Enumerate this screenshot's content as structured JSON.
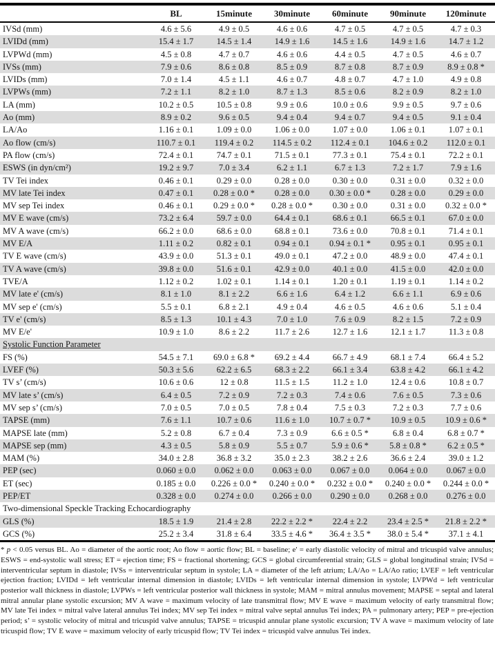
{
  "colors": {
    "stripe": "#dcdcdc",
    "border": "#000000",
    "text": "#141414",
    "background": "#ffffff"
  },
  "table": {
    "columns": [
      "BL",
      "15minute",
      "30minute",
      "60minute",
      "90minute",
      "120minute"
    ],
    "rows": [
      {
        "type": "data",
        "label": "IVSd (mm)",
        "values": [
          "4.6 ± 5.6",
          "4.9 ± 0.5",
          "4.6 ± 0.6",
          "4.7 ± 0.5",
          "4.7 ± 0.5",
          "4.7 ± 0.3"
        ]
      },
      {
        "type": "data",
        "label": "LVIDd (mm)",
        "values": [
          "15.4 ± 1.7",
          "14.5 ± 1.4",
          "14.9 ± 1.6",
          "14.5 ± 1.6",
          "14.9 ± 1.6",
          "14.7 ± 1.2"
        ]
      },
      {
        "type": "data",
        "label": "LVPWd (mm)",
        "values": [
          "4.5 ± 0.8",
          "4.7 ± 0.7",
          "4.6 ± 0.6",
          "4.4 ± 0.5",
          "4.7 ± 0.5",
          "4.6 ± 0.7"
        ]
      },
      {
        "type": "data",
        "label": "IVSs (mm)",
        "values": [
          "7.9 ± 0.6",
          "8.6 ± 0.8",
          "8.5 ± 0.9",
          "8.7 ± 0.8",
          "8.7 ± 0.9",
          "8.9 ± 0.8 *"
        ]
      },
      {
        "type": "data",
        "label": "LVIDs (mm)",
        "values": [
          "7.0 ± 1.4",
          "4.5 ± 1.1",
          "4.6 ± 0.7",
          "4.8 ± 0.7",
          "4.7 ± 1.0",
          "4.9 ± 0.8"
        ]
      },
      {
        "type": "data",
        "label": "LVPWs (mm)",
        "values": [
          "7.2 ± 1.1",
          "8.2 ± 1.0",
          "8.7 ± 1.3",
          "8.5 ± 0.6",
          "8.2 ± 0.9",
          "8.2 ± 1.0"
        ]
      },
      {
        "type": "data",
        "label": "LA (mm)",
        "values": [
          "10.2 ± 0.5",
          "10.5 ± 0.8",
          "9.9 ± 0.6",
          "10.0 ± 0.6",
          "9.9 ± 0.5",
          "9.7 ± 0.6"
        ]
      },
      {
        "type": "data",
        "label": "Ao (mm)",
        "values": [
          "8.9 ± 0.2",
          "9.6 ± 0.5",
          "9.4 ± 0.4",
          "9.4 ± 0.7",
          "9.4 ± 0.5",
          "9.1 ± 0.4"
        ]
      },
      {
        "type": "data",
        "label": "LA/Ao",
        "values": [
          "1.16 ± 0.1",
          "1.09 ± 0.0",
          "1.06 ± 0.0",
          "1.07 ± 0.0",
          "1.06 ± 0.1",
          "1.07 ± 0.1"
        ]
      },
      {
        "type": "data",
        "label": "Ao flow (cm/s)",
        "values": [
          "110.7 ± 0.1",
          "119.4 ± 0.2",
          "114.5 ± 0.2",
          "112.4 ± 0.1",
          "104.6 ± 0.2",
          "112.0 ± 0.1"
        ]
      },
      {
        "type": "data",
        "label": "PA flow (cm/s)",
        "values": [
          "72.4 ± 0.1",
          "74.7 ± 0.1",
          "71.5 ± 0.1",
          "77.3 ± 0.1",
          "75.4 ± 0.1",
          "72.2 ± 0.1"
        ]
      },
      {
        "type": "data",
        "label": "ESWS (in dyn/cm²)",
        "values": [
          "19.2 ± 9.7",
          "7.0 ± 3.4",
          "6.2 ± 1.1",
          "6.7 ± 1.3",
          "7.2 ± 1.7",
          "7.9 ± 1.6"
        ]
      },
      {
        "type": "data",
        "label": "TV Tei index",
        "values": [
          "0.46 ± 0.1",
          "0.29 ± 0.0",
          "0.28 ± 0.0",
          "0.30 ± 0.0",
          "0.31 ± 0.0",
          "0.32 ± 0.0"
        ]
      },
      {
        "type": "data",
        "label": "MV late Tei index",
        "values": [
          "0.47 ± 0.1",
          "0.28 ± 0.0 *",
          "0.28 ± 0.0",
          "0.30 ± 0.0 *",
          "0.28 ± 0.0",
          "0.29 ± 0.0"
        ]
      },
      {
        "type": "data",
        "label": "MV sep Tei index",
        "values": [
          "0.46 ± 0.1",
          "0.29 ± 0.0 *",
          "0.28 ± 0.0 *",
          "0.30 ± 0.0",
          "0.31 ± 0.0",
          "0.32 ± 0.0 *"
        ]
      },
      {
        "type": "data",
        "label": "MV E wave (cm/s)",
        "values": [
          "73.2 ± 6.4",
          "59.7 ± 0.0",
          "64.4 ± 0.1",
          "68.6 ± 0.1",
          "66.5 ± 0.1",
          "67.0 ± 0.0"
        ]
      },
      {
        "type": "data",
        "label": "MV A wave (cm/s)",
        "values": [
          "66.2 ± 0.0",
          "68.6 ± 0.0",
          "68.8 ± 0.1",
          "73.6 ± 0.0",
          "70.8 ± 0.1",
          "71.4 ± 0.1"
        ]
      },
      {
        "type": "data",
        "label": "MV E/A",
        "values": [
          "1.11 ± 0.2",
          "0.82 ± 0.1",
          "0.94 ± 0.1",
          "0.94 ± 0.1 *",
          "0.95 ± 0.1",
          "0.95 ± 0.1"
        ]
      },
      {
        "type": "data",
        "label": "TV E wave (cm/s)",
        "values": [
          "43.9 ± 0.0",
          "51.3 ± 0.1",
          "49.0 ± 0.1",
          "47.2 ± 0.0",
          "48.9 ± 0.0",
          "47.4 ± 0.1"
        ]
      },
      {
        "type": "data",
        "label": "TV A wave (cm/s)",
        "values": [
          "39.8 ± 0.0",
          "51.6 ± 0.1",
          "42.9 ± 0.0",
          "40.1 ± 0.0",
          "41.5 ± 0.0",
          "42.0 ± 0.0"
        ]
      },
      {
        "type": "data",
        "label": "TVE/A",
        "values": [
          "1.12 ± 0.2",
          "1.02 ± 0.1",
          "1.14 ± 0.1",
          "1.20 ± 0.1",
          "1.19 ± 0.1",
          "1.14 ± 0.2"
        ]
      },
      {
        "type": "data",
        "label": "MV late e' (cm/s)",
        "values": [
          "8.1 ± 1.0",
          "8.1 ± 2.2",
          "6.6 ± 1.6",
          "6.4 ± 1.2",
          "6.6 ± 1.1",
          "6.9 ± 0.6"
        ]
      },
      {
        "type": "data",
        "label": "MV sep e' (cm/s)",
        "values": [
          "5.5 ± 0.1",
          "6.8 ± 2.1",
          "4.9 ± 0.4",
          "4.6 ± 0.5",
          "4.6 ± 0.6",
          "5.1 ± 0.4"
        ]
      },
      {
        "type": "data",
        "label": "TV e' (cm/s)",
        "values": [
          "8.5 ± 1.3",
          "10.1 ± 4.3",
          "7.0 ± 1.0",
          "7.6 ± 0.9",
          "8.2 ± 1.5",
          "7.2 ± 0.9"
        ]
      },
      {
        "type": "data",
        "label": "MV E/e'",
        "values": [
          "10.9 ± 1.0",
          "8.6 ± 2.2",
          "11.7 ± 2.6",
          "12.7 ± 1.6",
          "12.1 ± 1.7",
          "11.3 ± 0.8"
        ]
      },
      {
        "type": "section",
        "label": "Systolic Function Parameter",
        "underline": true
      },
      {
        "type": "data",
        "label": "FS (%)",
        "values": [
          "54.5 ± 7.1",
          "69.0 ± 6.8 *",
          "69.2 ± 4.4",
          "66.7 ± 4.9",
          "68.1 ± 7.4",
          "66.4 ± 5.2"
        ]
      },
      {
        "type": "data",
        "label": "LVEF (%)",
        "values": [
          "50.3 ± 5.6",
          "62.2 ± 6.5",
          "68.3 ± 2.2",
          "66.1 ± 3.4",
          "63.8 ± 4.2",
          "66.1 ± 4.2"
        ]
      },
      {
        "type": "data",
        "label": "TV s’ (cm/s)",
        "values": [
          "10.6 ± 0.6",
          "12 ± 0.8",
          "11.5 ± 1.5",
          "11.2 ± 1.0",
          "12.4 ± 0.6",
          "10.8 ± 0.7"
        ]
      },
      {
        "type": "data",
        "label": "MV late s’ (cm/s)",
        "values": [
          "6.4 ± 0.5",
          "7.2 ± 0.9",
          "7.2 ± 0.3",
          "7.4 ± 0.6",
          "7.6 ± 0.5",
          "7.3 ± 0.6"
        ]
      },
      {
        "type": "data",
        "label": "MV sep s’ (cm/s)",
        "values": [
          "7.0 ± 0.5",
          "7.0 ± 0.5",
          "7.8 ± 0.4",
          "7.5 ± 0.3",
          "7.2 ± 0.3",
          "7.7 ± 0.6"
        ]
      },
      {
        "type": "data",
        "label": "TAPSE (mm)",
        "values": [
          "7.6 ± 1.1",
          "10.7 ± 0.6",
          "11.6 ± 1.0",
          "10.7 ± 0.7 *",
          "10.9 ± 0.5",
          "10.9 ± 0.6 *"
        ]
      },
      {
        "type": "data",
        "label": "MAPSE late (mm)",
        "values": [
          "5.2 ± 0.8",
          "6.7 ± 0.4",
          "7.3 ± 0.9",
          "6.6 ± 0.5 *",
          "6.8 ± 0.4",
          "6.8 ± 0.7 *"
        ]
      },
      {
        "type": "data",
        "label": "MAPSE sep (mm)",
        "values": [
          "4.3 ± 0.5",
          "5.8 ± 0.9",
          "5.5 ± 0.7",
          "5.9 ± 0.6 *",
          "5.8 ± 0.8 *",
          "6.2 ± 0.5 *"
        ]
      },
      {
        "type": "data",
        "label": "MAM (%)",
        "values": [
          "34.0 ± 2.8",
          "36.8 ± 3.2",
          "35.0 ± 2.3",
          "38.2 ± 2.6",
          "36.6 ± 2.4",
          "39.0 ± 1.2"
        ]
      },
      {
        "type": "data",
        "label": "PEP (sec)",
        "values": [
          "0.060 ± 0.0",
          "0.062 ± 0.0",
          "0.063 ± 0.0",
          "0.067 ± 0.0",
          "0.064 ± 0.0",
          "0.067 ± 0.0"
        ]
      },
      {
        "type": "data",
        "label": "ET (sec)",
        "values": [
          "0.185 ± 0.0",
          "0.226 ± 0.0 *",
          "0.240 ± 0.0 *",
          "0.232 ± 0.0 *",
          "0.240 ± 0.0 *",
          "0.244 ± 0.0 *"
        ]
      },
      {
        "type": "data",
        "label": "PEP/ET",
        "values": [
          "0.328 ± 0.0",
          "0.274 ± 0.0",
          "0.266 ± 0.0",
          "0.290 ± 0.0",
          "0.268 ± 0.0",
          "0.276 ± 0.0"
        ]
      },
      {
        "type": "section",
        "label": "Two-dimensional Speckle Tracking Echocardiography",
        "underline": false
      },
      {
        "type": "data",
        "label": "GLS (%)",
        "values": [
          "18.5 ± 1.9",
          "21.4 ± 2.8",
          "22.2 ± 2.2 *",
          "22.4 ± 2.2",
          "23.4 ± 2.5 *",
          "21.8 ± 2.2 *"
        ]
      },
      {
        "type": "data",
        "label": "GCS (%)",
        "values": [
          "25.2 ± 3.4",
          "31.8 ± 6.4",
          "33.5 ± 4.6 *",
          "36.4 ± 3.5 *",
          "38.0 ± 5.4 *",
          "37.1 ± 4.1"
        ]
      }
    ]
  },
  "footnote": {
    "star": "* ",
    "p": "p",
    "rest": " < 0.05 versus BL. Ao = diameter of the aortic root; Ao flow = aortic flow; BL = baseline; e' = early diastolic velocity of mitral and tricuspid valve annulus; ESWS = end-systolic wall stress; ET = ejection time; FS = fractional shortening; GCS = global circumferential strain; GLS = global longitudinal strain; IVSd = interventricular septum in diastole; IVSs = interventricular septum in systole; LA = diameter of the left atrium; LA/Ao = LA/Ao ratio; LVEF = left ventricular ejection fraction; LVIDd = left ventricular internal dimension in diastole; LVIDs = left ventricular internal dimension in systole; LVPWd = left ventricular posterior wall thickness in diastole; LVPWs = left ventricular posterior wall thickness in systole; MAM = mitral annulus movement; MAPSE = septal and lateral mitral annular plane systolic excursion; MV A wave = maximum velocity of late transmitral flow; MV E wave = maximum velocity of early transmitral flow; MV late Tei index = mitral valve lateral annulus Tei index; MV sep Tei index = mitral valve septal annulus Tei index; PA = pulmonary artery; PEP = pre-ejection period; s’ = systolic velocity of mitral and tricuspid valve annulus; TAPSE = tricuspid annular plane systolic excursion; TV A wave = maximum velocity of late tricuspid flow; TV E wave = maximum velocity of early tricuspid flow; TV Tei index = tricuspid valve annulus Tei index."
  }
}
